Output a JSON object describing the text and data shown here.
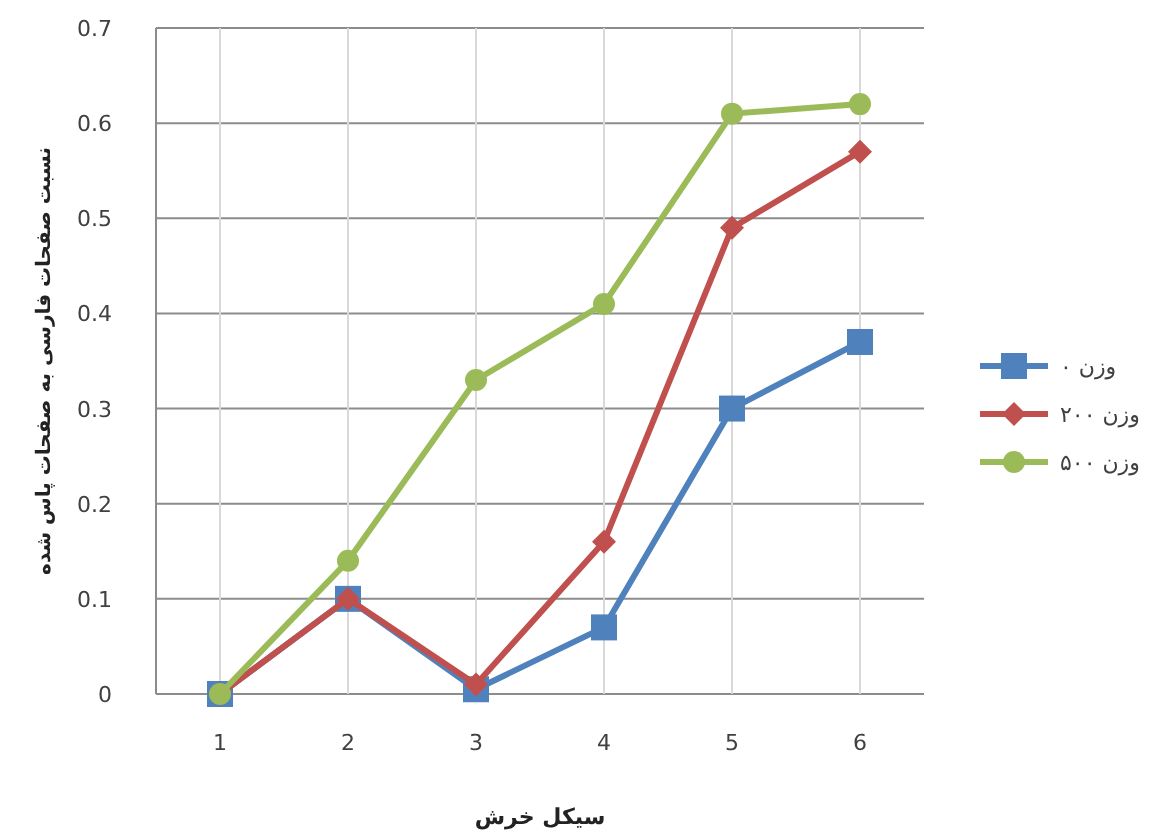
{
  "chart_data": {
    "type": "line",
    "xlabel": "سیکل خرش",
    "ylabel": "نسبت صفحات فارسی به صفحات پاس شده",
    "categories": [
      "1",
      "2",
      "3",
      "4",
      "5",
      "6"
    ],
    "ylim": [
      0,
      0.7
    ],
    "yticks": [
      0,
      0.1,
      0.2,
      0.3,
      0.4,
      0.5,
      0.6,
      0.7
    ],
    "grid": true,
    "legend": "right",
    "series": [
      {
        "name": "وزن ۰",
        "color": "#4f81bd",
        "marker": "square",
        "values": [
          0,
          0.1,
          0.005,
          0.07,
          0.3,
          0.37
        ]
      },
      {
        "name": "وزن ۲۰۰",
        "color": "#c0504d",
        "marker": "diamond",
        "values": [
          0,
          0.1,
          0.01,
          0.16,
          0.49,
          0.57
        ]
      },
      {
        "name": "وزن ۵۰۰",
        "color": "#9bbb59",
        "marker": "circle",
        "values": [
          0,
          0.14,
          0.33,
          0.41,
          0.61,
          0.62
        ]
      }
    ]
  }
}
